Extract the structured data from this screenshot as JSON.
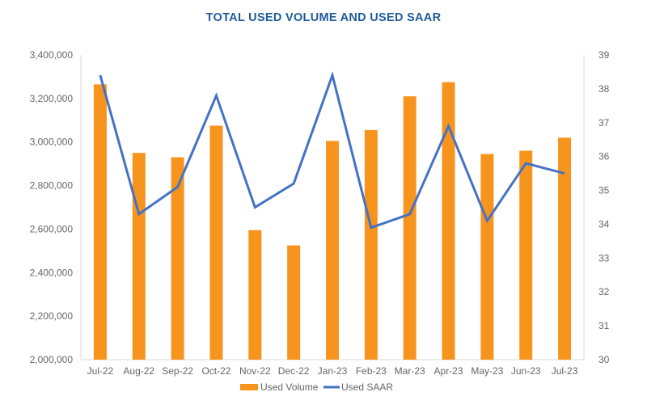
{
  "chart_data": {
    "type": "bar+line",
    "title": "TOTAL USED VOLUME AND USED SAAR",
    "xlabel": "",
    "ylabel": "",
    "categories": [
      "Jul-22",
      "Aug-22",
      "Sep-22",
      "Oct-22",
      "Nov-22",
      "Dec-22",
      "Jan-23",
      "Feb-23",
      "Mar-23",
      "Apr-23",
      "May-23",
      "Jun-23",
      "Jul-23"
    ],
    "series": [
      {
        "name": "Used Volume",
        "type": "bar",
        "axis": "left",
        "color": "#f7941d",
        "values": [
          3265000,
          2950000,
          2930000,
          3075000,
          2595000,
          2525000,
          3005000,
          3055000,
          3210000,
          3275000,
          2945000,
          2960000,
          3020000
        ]
      },
      {
        "name": "Used SAAR",
        "type": "line",
        "axis": "right",
        "color": "#4472c4",
        "values": [
          38.4,
          34.3,
          35.1,
          37.8,
          34.5,
          35.2,
          38.4,
          33.9,
          34.3,
          36.9,
          34.1,
          35.8,
          35.5
        ]
      }
    ],
    "y_left": {
      "ylim": [
        2000000,
        3400000
      ],
      "ticks": [
        "2,000,000",
        "2,200,000",
        "2,400,000",
        "2,600,000",
        "2,800,000",
        "3,000,000",
        "3,200,000",
        "3,400,000"
      ],
      "tick_values": [
        2000000,
        2200000,
        2400000,
        2600000,
        2800000,
        3000000,
        3200000,
        3400000
      ]
    },
    "y_right": {
      "ylim": [
        30,
        39
      ],
      "ticks": [
        "30",
        "31",
        "32",
        "33",
        "34",
        "35",
        "36",
        "37",
        "38",
        "39"
      ],
      "tick_values": [
        30,
        31,
        32,
        33,
        34,
        35,
        36,
        37,
        38,
        39
      ]
    },
    "grid": false,
    "legend": {
      "placement": "bottom",
      "entries": [
        "Used Volume",
        "Used SAAR"
      ]
    }
  }
}
